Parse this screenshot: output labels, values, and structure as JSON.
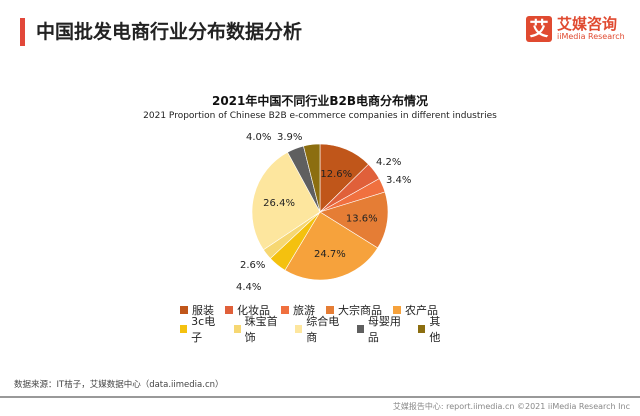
{
  "header": {
    "title": "中国批发电商行业分布数据分析",
    "logo_mark": "艾",
    "logo_cn": "艾媒咨询",
    "logo_en": "iiMedia Research"
  },
  "chart_data": {
    "type": "pie",
    "title": "2021年中国不同行业B2B电商分布情况",
    "subtitle": "2021 Proportion of Chinese B2B e-commerce companies in different industries",
    "categories": [
      "服装",
      "化妆品",
      "旅游",
      "大宗商品",
      "农产品",
      "3c电子",
      "珠宝首饰",
      "综合电商",
      "母婴用品",
      "其他"
    ],
    "values": [
      12.6,
      4.2,
      3.4,
      13.6,
      24.7,
      4.4,
      2.6,
      26.4,
      4.0,
      3.9
    ],
    "labels": [
      "12.6%",
      "4.2%",
      "3.4%",
      "13.6%",
      "24.7%",
      "4.4%",
      "2.6%",
      "26.4%",
      "4.0%",
      "3.9%"
    ],
    "colors": [
      "#c0561a",
      "#e0603a",
      "#f0703f",
      "#e57d35",
      "#f6a23c",
      "#f4c10f",
      "#f6d772",
      "#fde69e",
      "#5f5f5f",
      "#8c6e10"
    ],
    "legend_placement": "bottom"
  },
  "footer": {
    "source": "数据来源：IT桔子，艾媒数据中心（data.iimedia.cn）",
    "copyright": "艾媒报告中心: report.iimedia.cn ©2021 iiMedia Research Inc"
  }
}
